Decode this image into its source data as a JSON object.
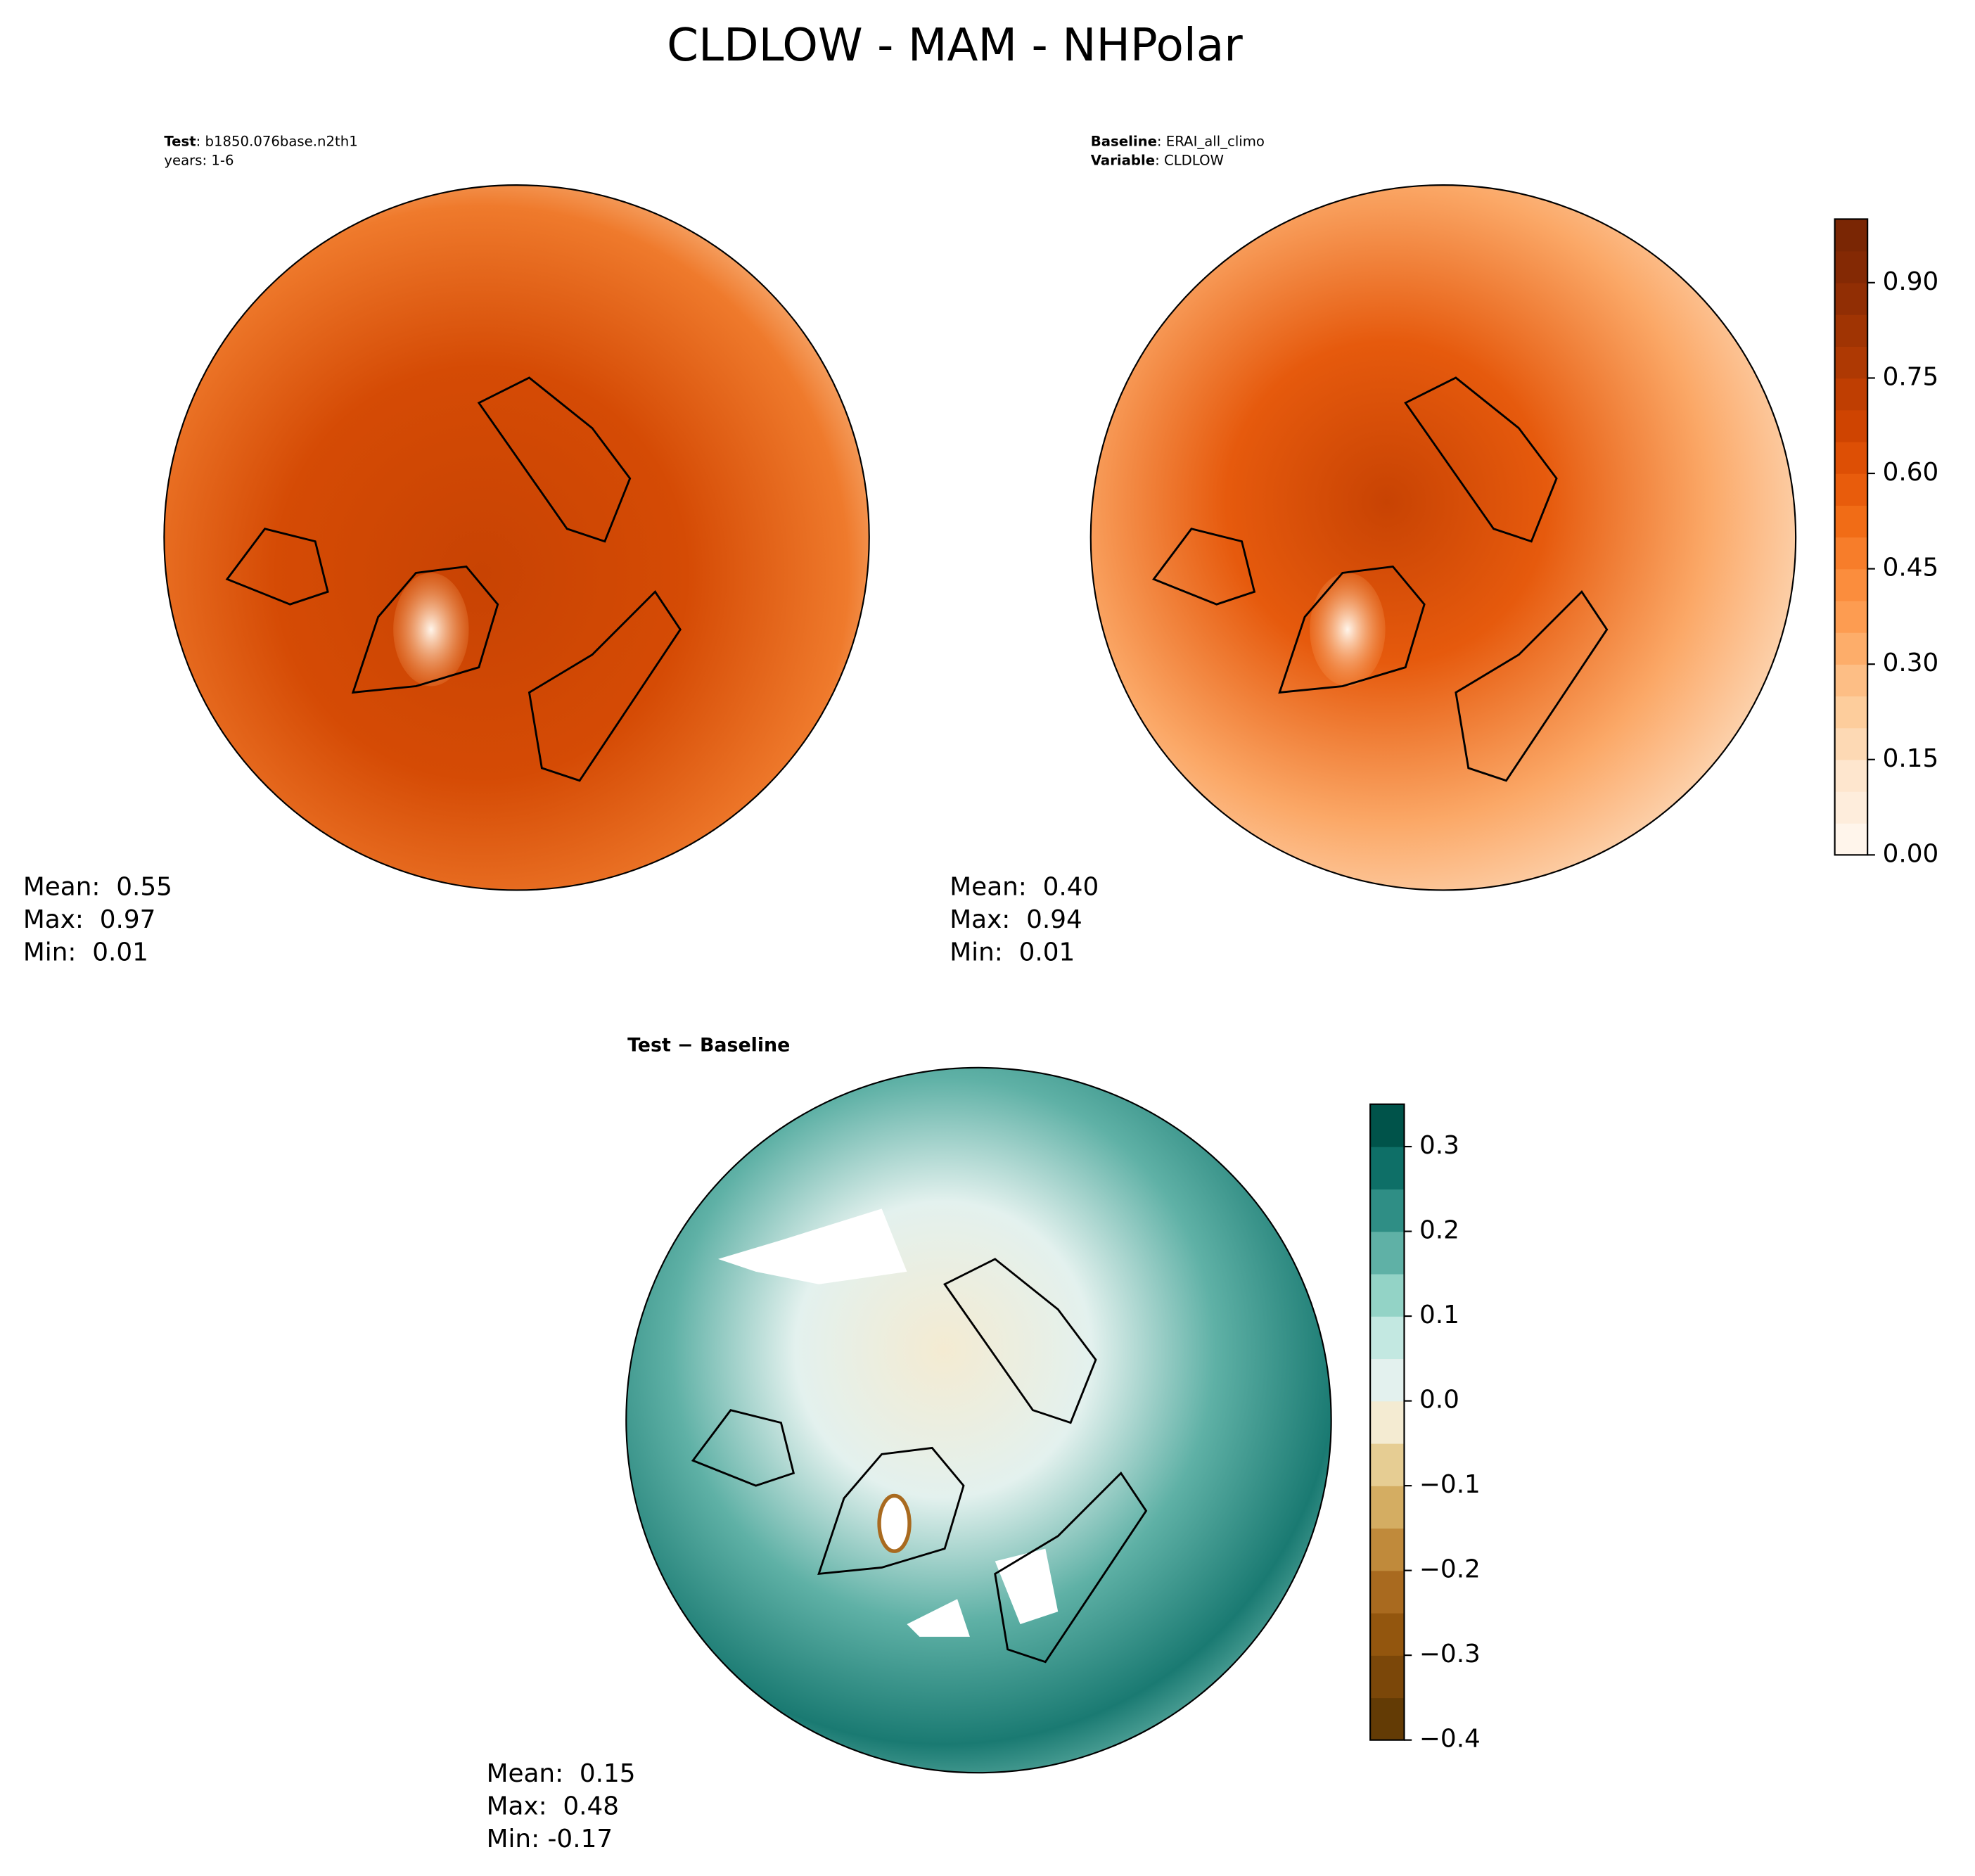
{
  "title": "CLDLOW - MAM - NHPolar",
  "panels": [
    {
      "header": [
        {
          "label": "Test",
          "text": ": b1850.076base.n2th1"
        },
        {
          "text": "years: 1-6"
        }
      ],
      "stats": [
        "Mean:  0.55",
        "Max:  0.97",
        "Min:  0.01"
      ]
    },
    {
      "header": [
        {
          "label": "Baseline",
          "text": ": ERAI_all_climo"
        },
        {
          "label": "Variable",
          "text": ": CLDLOW"
        }
      ],
      "stats": [
        "Mean:  0.40",
        "Max:  0.94",
        "Min:  0.01"
      ]
    },
    {
      "header": [
        {
          "label": "Test − Baseline"
        }
      ],
      "stats": [
        "Mean:  0.15",
        "Max:  0.48",
        "Min: -0.17"
      ]
    }
  ],
  "colorbars": [
    {
      "lim": [
        0,
        1.0
      ],
      "colors": [
        "#fff5eb",
        "#feeddc",
        "#fee6ce",
        "#fdd9b4",
        "#fdcd9c",
        "#fdbe85",
        "#fdad6a",
        "#fd9c51",
        "#fb8d3d",
        "#f77d2a",
        "#f16c16",
        "#e85c0c",
        "#dd4f05",
        "#cf4401",
        "#bf3e02",
        "#ae3903",
        "#a03403",
        "#912e04",
        "#842904",
        "#7a2604"
      ],
      "ticks": [
        {
          "value": 0,
          "label": "0.00"
        },
        {
          "value": 0.15,
          "label": "0.15"
        },
        {
          "value": 0.3,
          "label": "0.30"
        },
        {
          "value": 0.45,
          "label": "0.45"
        },
        {
          "value": 0.6,
          "label": "0.60"
        },
        {
          "value": 0.75,
          "label": "0.75"
        },
        {
          "value": 0.9,
          "label": "0.90"
        }
      ]
    },
    {
      "lim": [
        -0.4,
        0.35
      ],
      "colors": [
        "#633b05",
        "#7b4709",
        "#93560e",
        "#a96a1f",
        "#c08a3b",
        "#d4ad62",
        "#e6cd93",
        "#f4ebd2",
        "#e3f1ee",
        "#c3e8e1",
        "#93d3c6",
        "#5fb1a6",
        "#2f8e85",
        "#0e6f67",
        "#00534a"
      ],
      "ticks": [
        {
          "value": -0.4,
          "label": "−0.4"
        },
        {
          "value": -0.3,
          "label": "−0.3"
        },
        {
          "value": -0.2,
          "label": "−0.2"
        },
        {
          "value": -0.1,
          "label": "−0.1"
        },
        {
          "value": 0,
          "label": "0.0"
        },
        0.1,
        0.2,
        0.3
      ]
    }
  ]
}
